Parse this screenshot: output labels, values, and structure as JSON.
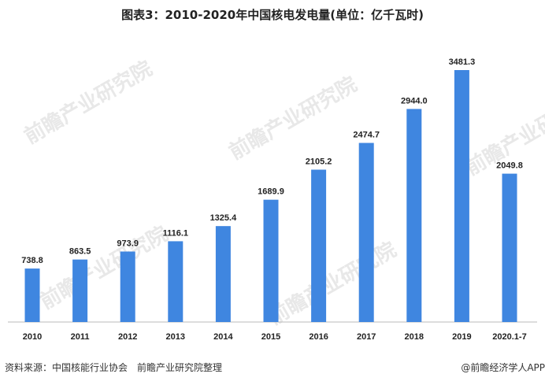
{
  "title": "图表3：2010-2020年中国核电发电量(单位：亿千瓦时)",
  "watermark": "前瞻产业研究院",
  "footer": {
    "source": "资料来源：中国核能行业协会　前瞻产业研究院整理",
    "brand": "@前瞻经济学人APP"
  },
  "chart_data": {
    "type": "bar",
    "title": "图表3：2010-2020年中国核电发电量(单位：亿千瓦时)",
    "categories": [
      "2010",
      "2011",
      "2012",
      "2013",
      "2014",
      "2015",
      "2016",
      "2017",
      "2018",
      "2019",
      "2020.1-7"
    ],
    "values": [
      738.8,
      863.5,
      973.9,
      1116.1,
      1325.4,
      1689.9,
      2105.2,
      2474.7,
      2944.0,
      3481.3,
      2049.8
    ],
    "labels": [
      "738.8",
      "863.5",
      "973.9",
      "1116.1",
      "1325.4",
      "1689.9",
      "2105.2",
      "2474.7",
      "2944.0",
      "3481.3",
      "2049.8"
    ],
    "ylim": [
      0,
      3481.3
    ],
    "grid": false,
    "color": "#3f86e0"
  }
}
